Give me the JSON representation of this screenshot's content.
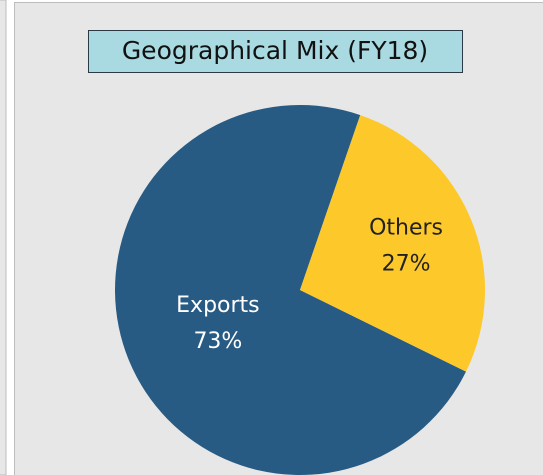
{
  "chart_data": {
    "type": "pie",
    "title": "Geographical Mix (FY18)",
    "categories": [
      "Exports",
      "Others"
    ],
    "values": [
      73,
      27
    ],
    "value_labels": [
      "73%",
      "27%"
    ],
    "colors": [
      "#285b84",
      "#fdc82a"
    ]
  }
}
